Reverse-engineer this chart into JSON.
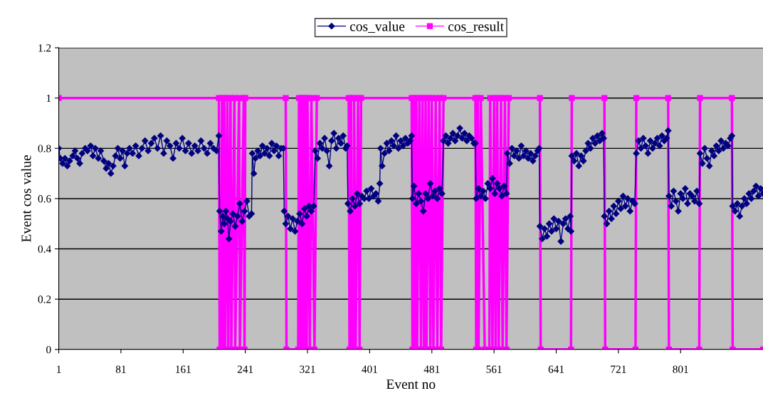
{
  "chart_data": {
    "type": "line",
    "xlabel": "Event no",
    "ylabel": "Event cos value",
    "xlim": [
      1,
      907
    ],
    "xticks": [
      1,
      81,
      161,
      241,
      321,
      401,
      481,
      561,
      641,
      721,
      801
    ],
    "ylim": [
      0,
      1.2
    ],
    "yticks": [
      0,
      0.2,
      0.4,
      0.6,
      0.8,
      1,
      1.2
    ],
    "grid": "y",
    "legend": "top",
    "series": [
      {
        "name": "cos_value",
        "color": "#000080",
        "marker": "diamond",
        "x": [
          1,
          3,
          6,
          9,
          12,
          15,
          19,
          22,
          25,
          28,
          31,
          35,
          38,
          42,
          45,
          48,
          52,
          55,
          59,
          62,
          65,
          68,
          71,
          74,
          77,
          80,
          83,
          86,
          89,
          92,
          96,
          100,
          104,
          108,
          112,
          116,
          120,
          124,
          128,
          132,
          136,
          140,
          144,
          148,
          152,
          156,
          160,
          164,
          168,
          172,
          176,
          180,
          184,
          188,
          192,
          196,
          200,
          204,
          207,
          208,
          210,
          212,
          214,
          216,
          218,
          220,
          222,
          225,
          228,
          231,
          234,
          237,
          240,
          243,
          246,
          249,
          250,
          252,
          254,
          257,
          260,
          263,
          266,
          269,
          272,
          275,
          278,
          281,
          284,
          287,
          290,
          291,
          293,
          296,
          299,
          302,
          305,
          308,
          311,
          314,
          317,
          320,
          323,
          326,
          329,
          331,
          334,
          337,
          340,
          343,
          346,
          349,
          352,
          355,
          358,
          361,
          364,
          367,
          370,
          372,
          373,
          376,
          379,
          382,
          385,
          388,
          391,
          394,
          397,
          400,
          403,
          406,
          409,
          412,
          414,
          415,
          417,
          420,
          423,
          426,
          429,
          432,
          435,
          438,
          441,
          444,
          447,
          450,
          453,
          455,
          456,
          458,
          461,
          464,
          467,
          470,
          473,
          476,
          479,
          482,
          485,
          488,
          491,
          494,
          496,
          499,
          502,
          505,
          508,
          511,
          514,
          517,
          520,
          523,
          526,
          529,
          532,
          535,
          537,
          538,
          541,
          544,
          547,
          550,
          553,
          556,
          559,
          562,
          565,
          568,
          571,
          574,
          577,
          578,
          581,
          584,
          587,
          590,
          593,
          596,
          599,
          602,
          605,
          608,
          611,
          614,
          617,
          619,
          620,
          623,
          626,
          629,
          632,
          635,
          638,
          641,
          644,
          647,
          650,
          653,
          656,
          659,
          660,
          661,
          664,
          667,
          670,
          673,
          676,
          679,
          682,
          685,
          688,
          691,
          694,
          697,
          700,
          702,
          703,
          706,
          709,
          712,
          715,
          718,
          721,
          724,
          727,
          730,
          733,
          736,
          739,
          742,
          744,
          747,
          750,
          753,
          756,
          759,
          762,
          765,
          768,
          771,
          774,
          777,
          780,
          783,
          785,
          786,
          789,
          792,
          795,
          798,
          801,
          804,
          807,
          810,
          813,
          816,
          819,
          822,
          825,
          826,
          829,
          832,
          835,
          838,
          841,
          844,
          847,
          850,
          853,
          856,
          859,
          862,
          865,
          867,
          868,
          871,
          874,
          877,
          880,
          883,
          886,
          889,
          892,
          895,
          898,
          901,
          904,
          907
        ],
        "values": [
          0.8,
          0.76,
          0.74,
          0.76,
          0.73,
          0.75,
          0.77,
          0.79,
          0.76,
          0.74,
          0.78,
          0.8,
          0.79,
          0.81,
          0.77,
          0.8,
          0.76,
          0.79,
          0.75,
          0.72,
          0.74,
          0.7,
          0.73,
          0.77,
          0.8,
          0.76,
          0.79,
          0.73,
          0.78,
          0.8,
          0.78,
          0.81,
          0.77,
          0.8,
          0.83,
          0.79,
          0.82,
          0.84,
          0.8,
          0.85,
          0.78,
          0.83,
          0.81,
          0.76,
          0.82,
          0.8,
          0.84,
          0.79,
          0.82,
          0.78,
          0.81,
          0.79,
          0.83,
          0.8,
          0.78,
          0.82,
          0.8,
          0.79,
          0.85,
          0.55,
          0.47,
          0.53,
          0.5,
          0.55,
          0.52,
          0.44,
          0.51,
          0.54,
          0.49,
          0.53,
          0.58,
          0.51,
          0.55,
          0.59,
          0.53,
          0.54,
          0.78,
          0.7,
          0.76,
          0.79,
          0.77,
          0.81,
          0.78,
          0.8,
          0.77,
          0.82,
          0.79,
          0.81,
          0.77,
          0.8,
          0.8,
          0.55,
          0.5,
          0.53,
          0.48,
          0.52,
          0.47,
          0.51,
          0.54,
          0.5,
          0.56,
          0.53,
          0.57,
          0.55,
          0.57,
          0.79,
          0.76,
          0.82,
          0.8,
          0.84,
          0.79,
          0.73,
          0.83,
          0.86,
          0.8,
          0.84,
          0.82,
          0.85,
          0.8,
          0.81,
          0.58,
          0.55,
          0.6,
          0.57,
          0.62,
          0.58,
          0.61,
          0.6,
          0.63,
          0.6,
          0.64,
          0.61,
          0.62,
          0.59,
          0.66,
          0.8,
          0.73,
          0.78,
          0.82,
          0.79,
          0.83,
          0.81,
          0.85,
          0.8,
          0.83,
          0.81,
          0.84,
          0.82,
          0.83,
          0.85,
          0.6,
          0.65,
          0.58,
          0.62,
          0.59,
          0.55,
          0.62,
          0.6,
          0.66,
          0.61,
          0.63,
          0.6,
          0.64,
          0.62,
          0.83,
          0.85,
          0.82,
          0.84,
          0.86,
          0.83,
          0.85,
          0.88,
          0.84,
          0.86,
          0.83,
          0.85,
          0.84,
          0.82,
          0.82,
          0.6,
          0.64,
          0.61,
          0.63,
          0.6,
          0.66,
          0.64,
          0.68,
          0.62,
          0.66,
          0.64,
          0.61,
          0.65,
          0.62,
          0.78,
          0.74,
          0.8,
          0.77,
          0.79,
          0.76,
          0.81,
          0.77,
          0.79,
          0.76,
          0.78,
          0.75,
          0.77,
          0.79,
          0.8,
          0.49,
          0.44,
          0.48,
          0.45,
          0.5,
          0.47,
          0.52,
          0.48,
          0.51,
          0.43,
          0.5,
          0.52,
          0.48,
          0.53,
          0.47,
          0.77,
          0.75,
          0.78,
          0.73,
          0.77,
          0.75,
          0.79,
          0.82,
          0.8,
          0.84,
          0.82,
          0.85,
          0.83,
          0.86,
          0.84,
          0.53,
          0.5,
          0.55,
          0.52,
          0.57,
          0.54,
          0.59,
          0.56,
          0.61,
          0.57,
          0.6,
          0.55,
          0.59,
          0.58,
          0.78,
          0.83,
          0.8,
          0.84,
          0.81,
          0.78,
          0.83,
          0.8,
          0.82,
          0.84,
          0.81,
          0.85,
          0.83,
          0.84,
          0.87,
          0.61,
          0.57,
          0.63,
          0.59,
          0.55,
          0.62,
          0.6,
          0.64,
          0.58,
          0.62,
          0.61,
          0.59,
          0.63,
          0.58,
          0.78,
          0.74,
          0.8,
          0.76,
          0.73,
          0.79,
          0.77,
          0.81,
          0.79,
          0.83,
          0.8,
          0.82,
          0.81,
          0.84,
          0.85,
          0.57,
          0.55,
          0.58,
          0.53,
          0.57,
          0.6,
          0.58,
          0.62,
          0.6,
          0.63,
          0.65,
          0.61,
          0.64,
          0.62
        ]
      },
      {
        "name": "cos_result",
        "color": "#ff00ff",
        "marker": "square",
        "x": [
          1,
          207,
          208,
          210,
          211,
          212,
          214,
          215,
          218,
          219,
          222,
          223,
          227,
          228,
          233,
          234,
          239,
          240,
          241,
          293,
          294,
          309,
          310,
          312,
          313,
          314,
          316,
          317,
          318,
          320,
          321,
          324,
          326,
          330,
          333,
          374,
          375,
          377,
          378,
          380,
          381,
          383,
          386,
          388,
          390,
          455,
          456,
          458,
          459,
          461,
          462,
          465,
          467,
          469,
          471,
          473,
          474,
          477,
          479,
          481,
          483,
          486,
          488,
          491,
          493,
          496,
          537,
          538,
          540,
          541,
          544,
          549,
          555,
          556,
          559,
          561,
          563,
          565,
          567,
          570,
          572,
          575,
          577,
          580,
          620,
          621,
          660,
          661,
          703,
          704,
          743,
          744,
          785,
          786,
          825,
          826,
          867,
          868,
          907
        ],
        "values": [
          1,
          1,
          0,
          0,
          1,
          0,
          1,
          0,
          1,
          0,
          1,
          0,
          1,
          0,
          1,
          0,
          1,
          0,
          1,
          1,
          0,
          0,
          1,
          0,
          1,
          0,
          1,
          0,
          1,
          0,
          1,
          0,
          1,
          0,
          1,
          1,
          0,
          1,
          0,
          0,
          1,
          0,
          1,
          0,
          1,
          1,
          0,
          1,
          0,
          1,
          0,
          1,
          0,
          1,
          0,
          1,
          0,
          1,
          0,
          1,
          0,
          1,
          0,
          1,
          0,
          1,
          1,
          0,
          1,
          0,
          1,
          0,
          0,
          1,
          0,
          1,
          0,
          1,
          0,
          1,
          0,
          1,
          0,
          1,
          1,
          0,
          0,
          1,
          1,
          0,
          0,
          1,
          1,
          0,
          0,
          1,
          1,
          0,
          0
        ]
      }
    ]
  }
}
